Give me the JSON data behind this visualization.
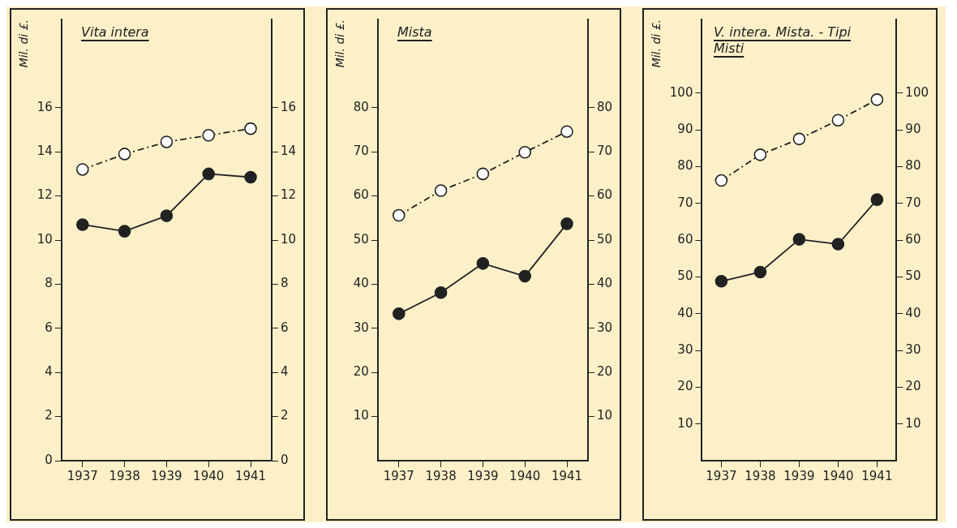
{
  "chart_data": [
    {
      "type": "line",
      "title": "Vita intera",
      "ylabel": "Mil. di £.",
      "categories": [
        "1937",
        "1938",
        "1939",
        "1940",
        "1941"
      ],
      "ylim": [
        0,
        20
      ],
      "yticks": [
        0,
        2,
        4,
        6,
        8,
        10,
        12,
        14,
        16
      ],
      "y2lim": [
        0,
        20
      ],
      "y2ticks": [
        0,
        2,
        4,
        6,
        8,
        10,
        12,
        14,
        16
      ],
      "grid": false,
      "legend": false,
      "marker": "circle",
      "series": [
        {
          "color": "#222222",
          "line_style": "dashed",
          "values": [
            13.2,
            13.9,
            14.45,
            14.75,
            15.05
          ]
        },
        {
          "color": "#222222",
          "line_style": "solid",
          "values": [
            10.7,
            10.4,
            11.1,
            13.0,
            12.85
          ]
        }
      ]
    },
    {
      "type": "line",
      "title": "Mista",
      "ylabel": "Mil. di £.",
      "categories": [
        "1937",
        "1938",
        "1939",
        "1940",
        "1941"
      ],
      "ylim": [
        0,
        100
      ],
      "yticks": [
        10,
        20,
        30,
        40,
        50,
        60,
        70,
        80
      ],
      "y2lim": [
        0,
        100
      ],
      "y2ticks": [
        10,
        20,
        30,
        40,
        50,
        60,
        70,
        80
      ],
      "grid": false,
      "legend": false,
      "marker": "circle",
      "series": [
        {
          "color": "#222222",
          "line_style": "dashed",
          "values": [
            55.6,
            61.2,
            65,
            69.9,
            74.6
          ]
        },
        {
          "color": "#222222",
          "line_style": "solid",
          "values": [
            33.3,
            38.1,
            44.7,
            41.8,
            53.7
          ]
        }
      ]
    },
    {
      "type": "line",
      "title": "V. intera. Mista. - Tipi Misti",
      "ylabel": "Mil. di £.",
      "categories": [
        "1937",
        "1938",
        "1939",
        "1940",
        "1941"
      ],
      "ylim": [
        0,
        120
      ],
      "yticks": [
        10,
        20,
        30,
        40,
        50,
        60,
        70,
        80,
        90,
        100
      ],
      "y2lim": [
        0,
        120
      ],
      "y2ticks": [
        10,
        20,
        30,
        40,
        50,
        60,
        70,
        80,
        90,
        100
      ],
      "grid": false,
      "legend": false,
      "marker": "circle",
      "series": [
        {
          "color": "#222222",
          "line_style": "dashed",
          "values": [
            76.2,
            83.2,
            87.5,
            92.6,
            98.2
          ]
        },
        {
          "color": "#222222",
          "line_style": "solid",
          "values": [
            48.8,
            51.3,
            60.2,
            58.9,
            71.0
          ]
        }
      ]
    }
  ]
}
